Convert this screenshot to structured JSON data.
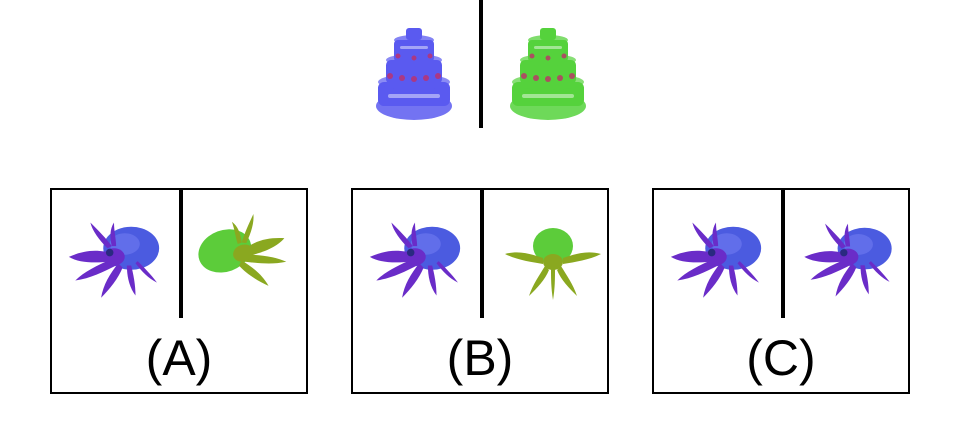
{
  "prompt": {
    "left_image": {
      "object": "cake",
      "tint": "#5a5af0"
    },
    "right_image": {
      "object": "cake",
      "tint": "#55d23c"
    }
  },
  "options": [
    {
      "label": "(A)",
      "left": {
        "object": "hermit-crab",
        "tint": "#5a3cdc",
        "pose": "standard"
      },
      "right": {
        "object": "hermit-crab",
        "tint": "#6ccc2e",
        "pose": "rotated"
      }
    },
    {
      "label": "(B)",
      "left": {
        "object": "hermit-crab",
        "tint": "#5a3cdc",
        "pose": "standard"
      },
      "right": {
        "object": "hermit-crab",
        "tint": "#6ccc2e",
        "pose": "front"
      }
    },
    {
      "label": "(C)",
      "left": {
        "object": "hermit-crab",
        "tint": "#5a3cdc",
        "pose": "standard"
      },
      "right": {
        "object": "hermit-crab",
        "tint": "#5a3cdc",
        "pose": "mirrored"
      }
    }
  ]
}
